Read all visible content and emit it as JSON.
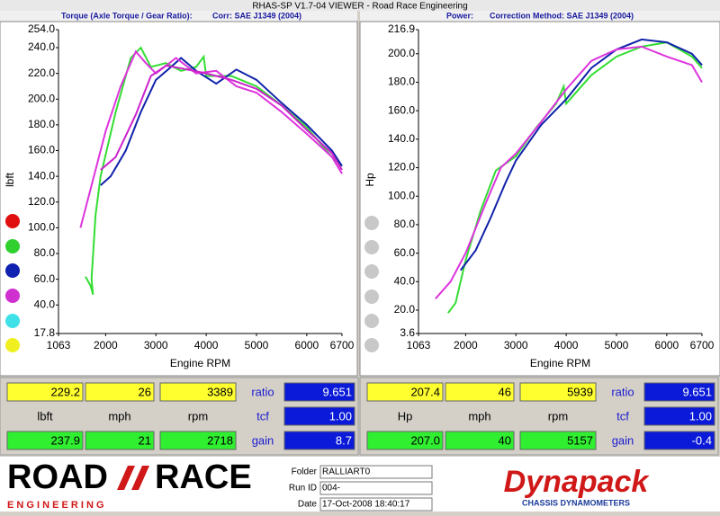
{
  "window_title": "RHAS-SP V1.7-04  VIEWER - Road Race Engineering",
  "chart_data": [
    {
      "type": "line",
      "title": "Torque (Axle Torque / Gear Ratio):",
      "subtitle": "Corr: SAE J1349 (2004)",
      "x_label": "Engine RPM",
      "y_label": "lbft",
      "xlim": [
        1063,
        6700
      ],
      "xticks": [
        1063,
        2000,
        3000,
        4000,
        5000,
        6000,
        6700
      ],
      "ylim": [
        17.8,
        254
      ],
      "yticks": [
        17.8,
        {
          "value": 40,
          "label": "40.0"
        },
        {
          "value": 60,
          "label": "60.0"
        },
        {
          "value": 80,
          "label": "80.0"
        },
        {
          "value": 100,
          "label": "100.0"
        },
        {
          "value": 120,
          "label": "120.0"
        },
        {
          "value": 140,
          "label": "140.0"
        },
        {
          "value": 160,
          "label": "160.0"
        },
        {
          "value": 180,
          "label": "180.0"
        },
        {
          "value": 200,
          "label": "200.0"
        },
        {
          "value": 220,
          "label": "220.0"
        },
        {
          "value": 240,
          "label": "240.0"
        },
        {
          "value": 254,
          "label": "254.0"
        }
      ],
      "series": [
        {
          "color": "#33dd33",
          "x": [
            1600,
            1700,
            1750,
            1720,
            1800,
            1900,
            2200,
            2500,
            2700,
            2900,
            3200,
            3500,
            3800,
            3950,
            4000,
            4500,
            5000,
            5500,
            6000,
            6500,
            6700
          ],
          "values": [
            62,
            55,
            48,
            60,
            110,
            140,
            190,
            232,
            240,
            225,
            228,
            222,
            225,
            233,
            218,
            218,
            210,
            195,
            178,
            155,
            148
          ]
        },
        {
          "color": "#1122aa",
          "x": [
            1900,
            2100,
            2400,
            2700,
            3000,
            3300,
            3500,
            3800,
            4200,
            4600,
            5000,
            5500,
            6000,
            6500,
            6700
          ],
          "values": [
            133,
            140,
            160,
            190,
            215,
            225,
            232,
            222,
            212,
            223,
            215,
            197,
            180,
            160,
            148
          ]
        },
        {
          "color": "#dd33dd",
          "x": [
            1500,
            1700,
            2000,
            2300,
            2600,
            2800,
            3000,
            3400,
            3800,
            4200,
            4600,
            5000,
            5500,
            6000,
            6500,
            6700
          ],
          "values": [
            100,
            130,
            175,
            210,
            237,
            228,
            220,
            232,
            220,
            222,
            210,
            205,
            190,
            173,
            155,
            142
          ]
        },
        {
          "color": "#cc22cc",
          "x": [
            1900,
            2200,
            2600,
            2900,
            3200,
            3500,
            4000,
            4500,
            5000,
            5500,
            6000,
            6500,
            6700
          ],
          "values": [
            145,
            155,
            188,
            218,
            226,
            224,
            220,
            215,
            208,
            195,
            176,
            158,
            145
          ]
        }
      ]
    },
    {
      "type": "line",
      "title": "Power:",
      "subtitle": "Correction Method: SAE J1349 (2004)",
      "x_label": "Engine RPM",
      "y_label": "Hp",
      "xlim": [
        1063,
        6700
      ],
      "xticks": [
        1063,
        2000,
        3000,
        4000,
        5000,
        6000,
        6700
      ],
      "ylim": [
        3.6,
        216.9
      ],
      "yticks": [
        3.6,
        {
          "value": 20,
          "label": "20.0"
        },
        {
          "value": 40,
          "label": "40.0"
        },
        {
          "value": 60,
          "label": "60.0"
        },
        {
          "value": 80,
          "label": "80.0"
        },
        {
          "value": 100,
          "label": "100.0"
        },
        {
          "value": 120,
          "label": "120.0"
        },
        {
          "value": 140,
          "label": "140.0"
        },
        {
          "value": 160,
          "label": "160.0"
        },
        {
          "value": 180,
          "label": "180.0"
        },
        {
          "value": 200,
          "label": "200.0"
        },
        216.9
      ],
      "series": [
        {
          "color": "#33dd33",
          "x": [
            1650,
            1800,
            2000,
            2300,
            2600,
            3000,
            3400,
            3800,
            3950,
            4000,
            4500,
            5000,
            5500,
            6000,
            6500,
            6700
          ],
          "values": [
            18,
            25,
            55,
            90,
            118,
            128,
            148,
            165,
            177,
            165,
            185,
            198,
            205,
            208,
            198,
            190
          ]
        },
        {
          "color": "#1122aa",
          "x": [
            1900,
            2200,
            2500,
            2800,
            3000,
            3500,
            4000,
            4500,
            5000,
            5500,
            6000,
            6500,
            6700
          ],
          "values": [
            48,
            62,
            85,
            110,
            125,
            150,
            168,
            190,
            203,
            210,
            208,
            200,
            192
          ]
        },
        {
          "color": "#dd33dd",
          "x": [
            1400,
            1700,
            2000,
            2400,
            2700,
            3000,
            3500,
            4000,
            4500,
            5000,
            5500,
            6000,
            6500,
            6700
          ],
          "values": [
            28,
            40,
            60,
            95,
            120,
            130,
            152,
            175,
            195,
            203,
            205,
            198,
            192,
            180
          ]
        }
      ]
    }
  ],
  "panels": [
    {
      "row1": [
        "229.2",
        "26",
        "3389"
      ],
      "ratio_label": "ratio",
      "ratio": "9.651",
      "units": [
        "lbft",
        "mph",
        "rpm"
      ],
      "tcf_label": "tcf",
      "tcf": "1.00",
      "row3": [
        "237.9",
        "21",
        "2718"
      ],
      "gain_label": "gain",
      "gain": "8.7"
    },
    {
      "row1": [
        "207.4",
        "46",
        "5939"
      ],
      "ratio_label": "ratio",
      "ratio": "9.651",
      "units": [
        "Hp",
        "mph",
        "rpm"
      ],
      "tcf_label": "tcf",
      "tcf": "1.00",
      "row3": [
        "207.0",
        "40",
        "5157"
      ],
      "gain_label": "gain",
      "gain": "-0.4"
    }
  ],
  "footer": {
    "logo_left": "ROAD",
    "logo_right": "RACE",
    "logo_sub": "E N G I N E E R I N G",
    "folder_label": "Folder",
    "folder": "RALLIART0",
    "run_label": "Run ID",
    "run": "004-",
    "date_label": "Date",
    "date": "17-Oct-2008  18:40:17",
    "brand": "Dynapack",
    "brand_sub": "CHASSIS DYNAMOMETERS"
  }
}
